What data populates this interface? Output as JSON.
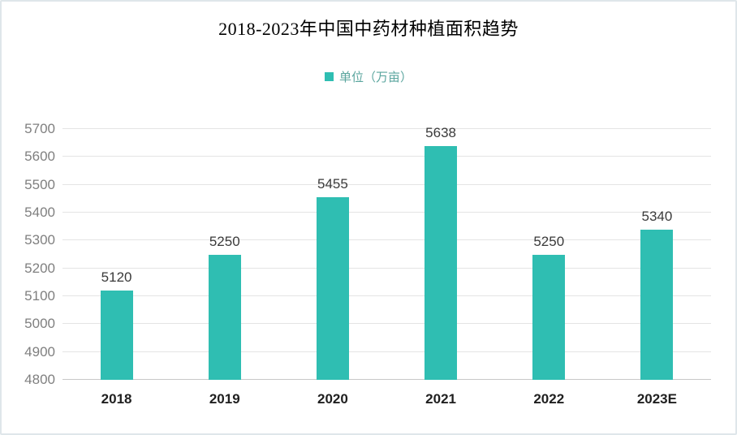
{
  "chart": {
    "title": "2018-2023年中国中药材种植面积趋势",
    "legend_label": "单位（万亩）"
  },
  "chart_data": {
    "type": "bar",
    "title": "2018-2023年中国中药材种植面积趋势",
    "categories": [
      "2018",
      "2019",
      "2020",
      "2021",
      "2022",
      "2023E"
    ],
    "values": [
      5120,
      5250,
      5455,
      5638,
      5250,
      5340
    ],
    "legend_entries": [
      "单位（万亩）"
    ],
    "legend_position": "top",
    "xlabel": "",
    "ylabel": "",
    "ylim": [
      4800,
      5700
    ],
    "yticks": [
      4800,
      4900,
      5000,
      5100,
      5200,
      5300,
      5400,
      5500,
      5600,
      5700
    ],
    "grid": true,
    "data_labels_shown": true
  },
  "colors": {
    "bar": "#2FBEB2",
    "legend_swatch": "#2FBEB2",
    "legend_text": "#5AA59E",
    "title_text": "#000000",
    "y_tick_text": "#7F7F7F",
    "x_tick_text": "#1F1F1F",
    "value_label_text": "#3A3A3A",
    "gridline": "#E4E4E4",
    "axis_line": "#C8C8C8",
    "frame_border": "#DFE6EA",
    "background": "#FFFFFF"
  }
}
